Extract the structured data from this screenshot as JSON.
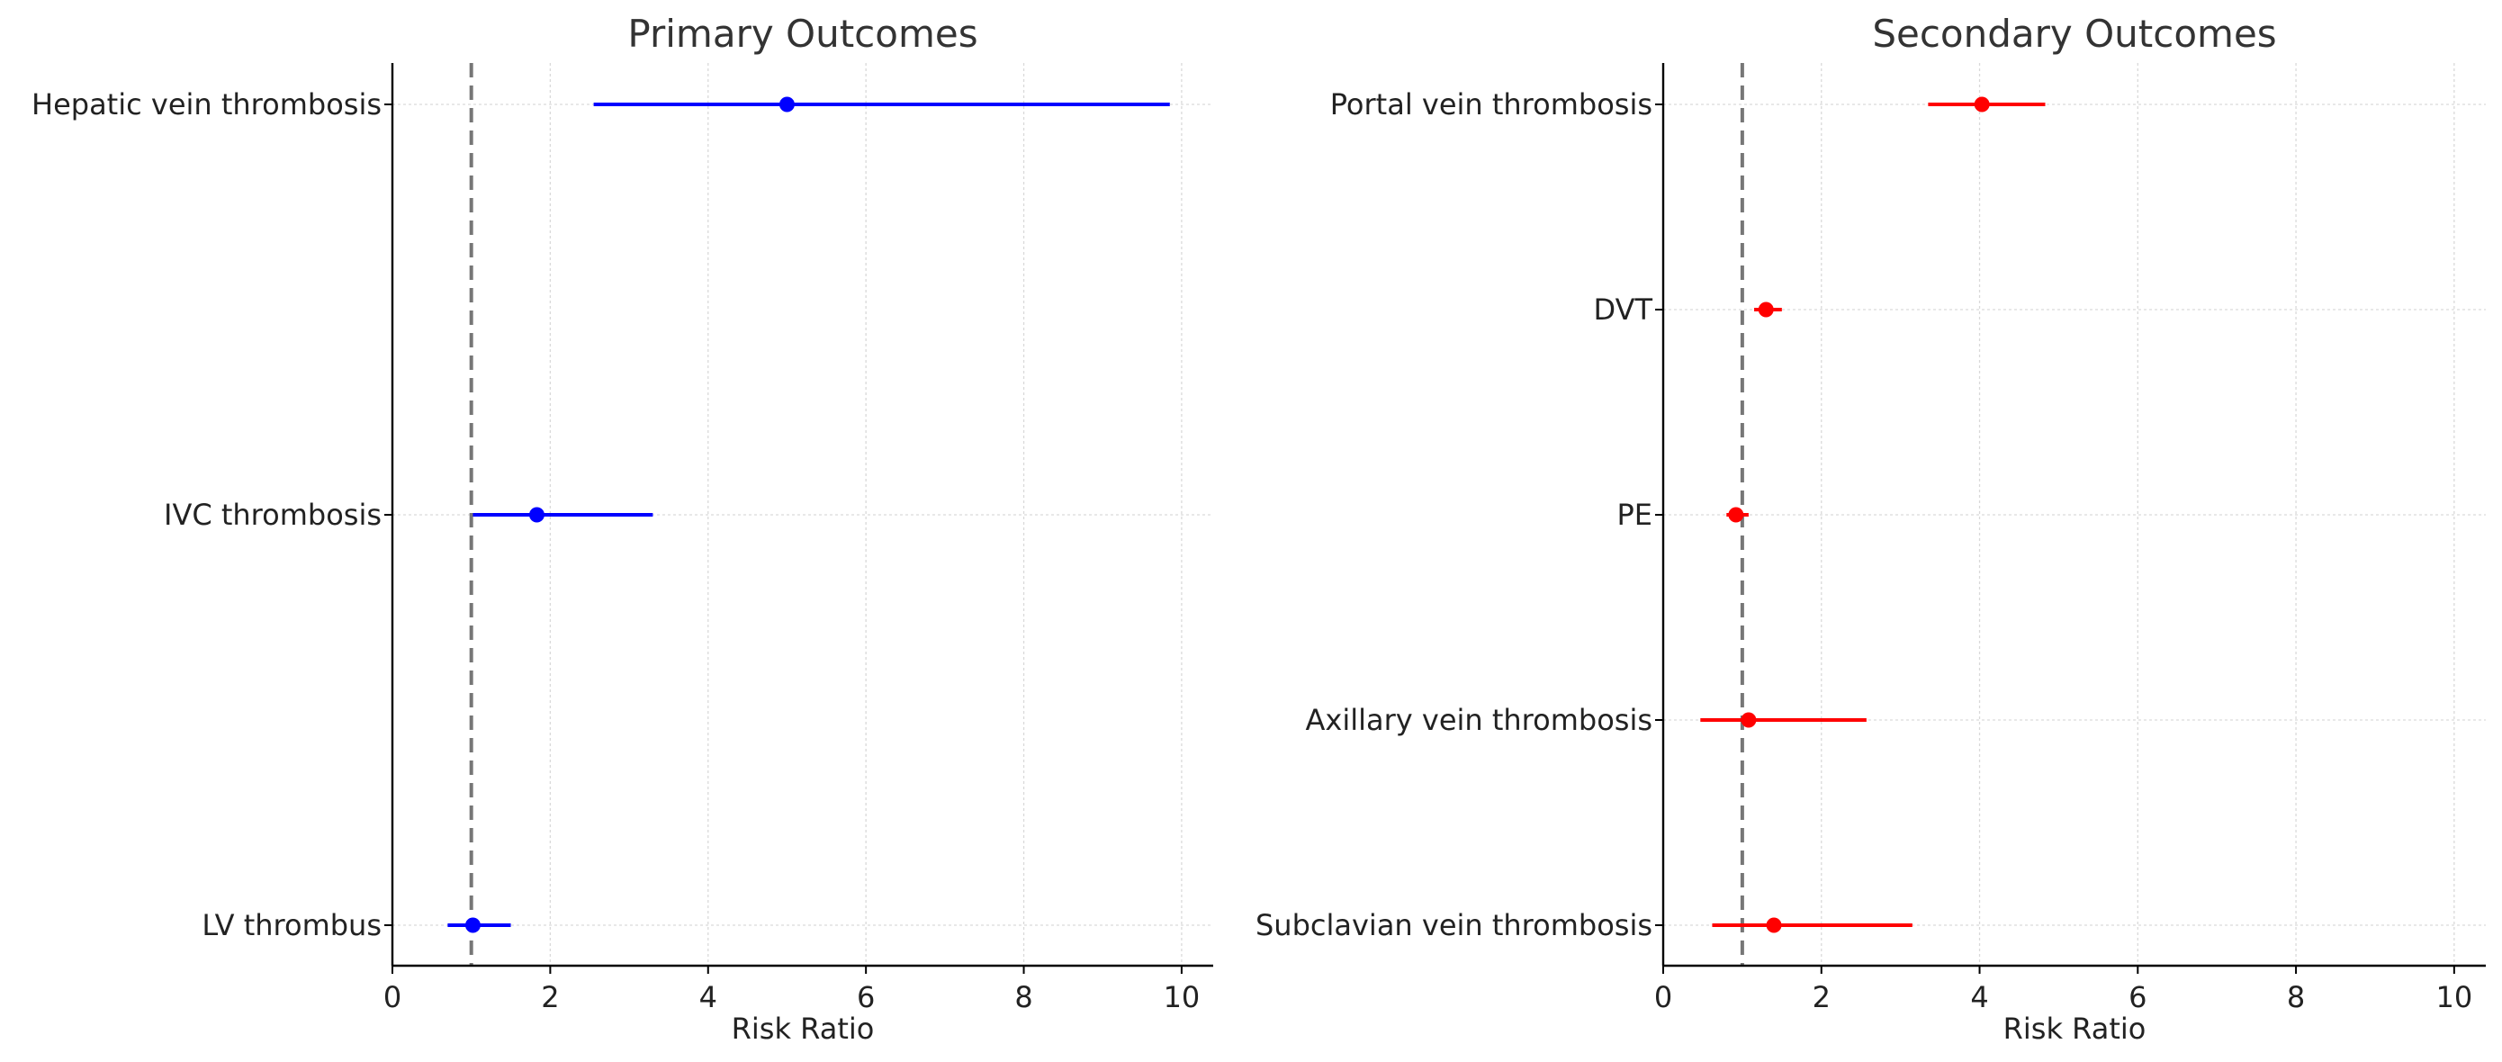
{
  "chart_data": [
    {
      "type": "forest",
      "title": "Primary Outcomes",
      "xlabel": "Risk Ratio",
      "ylabel": "",
      "xlim": [
        0,
        10.4
      ],
      "xticks": [
        0,
        2,
        4,
        6,
        8,
        10
      ],
      "reference_line": 1,
      "grid": true,
      "color": "#0000ff",
      "rows": [
        {
          "label": "Hepatic vein thrombosis",
          "rr": 5.0,
          "lo": 2.55,
          "hi": 9.85
        },
        {
          "label": "IVC thrombosis",
          "rr": 1.83,
          "lo": 1.02,
          "hi": 3.3
        },
        {
          "label": "LV thrombus",
          "rr": 1.02,
          "lo": 0.7,
          "hi": 1.5
        }
      ]
    },
    {
      "type": "forest",
      "title": "Secondary Outcomes",
      "xlabel": "Risk Ratio",
      "ylabel": "",
      "xlim": [
        0,
        10.4
      ],
      "xticks": [
        0,
        2,
        4,
        6,
        8,
        10
      ],
      "reference_line": 1,
      "grid": true,
      "color": "#ff0000",
      "rows": [
        {
          "label": "Portal vein thrombosis",
          "rr": 4.03,
          "lo": 3.35,
          "hi": 4.83
        },
        {
          "label": "DVT",
          "rr": 1.3,
          "lo": 1.15,
          "hi": 1.5
        },
        {
          "label": "PE",
          "rr": 0.92,
          "lo": 0.8,
          "hi": 1.08
        },
        {
          "label": "Axillary vein thrombosis",
          "rr": 1.08,
          "lo": 0.47,
          "hi": 2.57
        },
        {
          "label": "Subclavian vein thrombosis",
          "rr": 1.4,
          "lo": 0.62,
          "hi": 3.15
        }
      ]
    }
  ]
}
